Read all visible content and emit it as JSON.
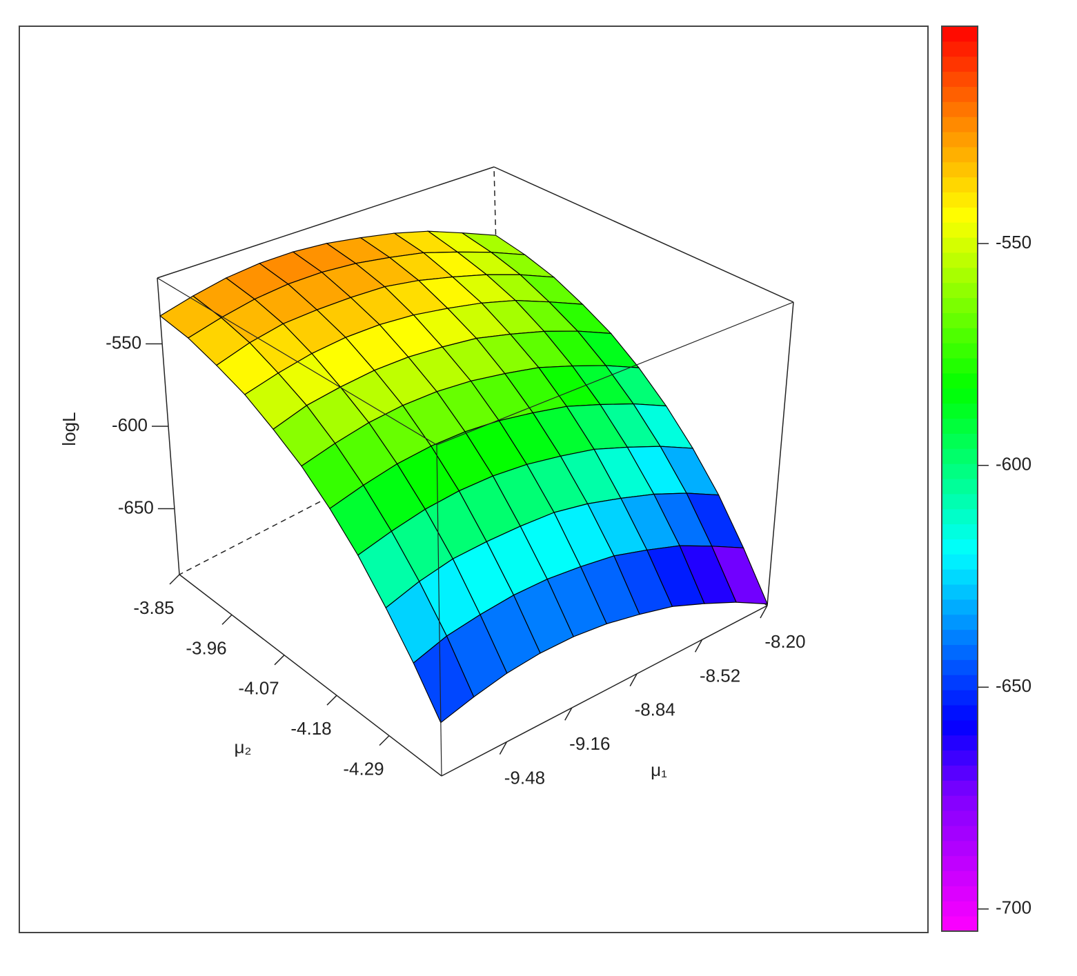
{
  "chart_data": {
    "type": "surface",
    "x_label": "μ₁",
    "y_label": "μ₂",
    "z_label": "logL",
    "x": [
      -9.8,
      -9.64,
      -9.48,
      -9.32,
      -9.16,
      -9.0,
      -8.84,
      -8.68,
      -8.52,
      -8.36,
      -8.2
    ],
    "y": [
      -4.4,
      -4.345,
      -4.29,
      -4.235,
      -4.18,
      -4.125,
      -4.07,
      -4.015,
      -3.96,
      -3.905,
      -3.85
    ],
    "z": [
      [
        -661,
        -656,
        -652,
        -650,
        -650,
        -652,
        -656,
        -661,
        -669,
        -678,
        -689
      ],
      [
        -639,
        -633,
        -630,
        -628,
        -628,
        -630,
        -633,
        -639,
        -646,
        -656,
        -667
      ],
      [
        -619,
        -613,
        -609,
        -608,
        -608,
        -609,
        -613,
        -619,
        -626,
        -635,
        -646
      ],
      [
        -600,
        -595,
        -591,
        -589,
        -589,
        -591,
        -595,
        -600,
        -608,
        -617,
        -628
      ],
      [
        -584,
        -579,
        -575,
        -573,
        -573,
        -575,
        -579,
        -584,
        -592,
        -601,
        -612
      ],
      [
        -570,
        -565,
        -561,
        -559,
        -559,
        -561,
        -565,
        -570,
        -578,
        -587,
        -598
      ],
      [
        -559,
        -553,
        -550,
        -548,
        -548,
        -550,
        -553,
        -559,
        -566,
        -575,
        -586
      ],
      [
        -549,
        -544,
        -540,
        -538,
        -538,
        -540,
        -544,
        -549,
        -556,
        -566,
        -577
      ],
      [
        -542,
        -536,
        -532,
        -531,
        -531,
        -532,
        -536,
        -542,
        -549,
        -558,
        -569
      ],
      [
        -536,
        -531,
        -527,
        -525,
        -525,
        -527,
        -531,
        -536,
        -544,
        -553,
        -564
      ],
      [
        -533,
        -528,
        -524,
        -522,
        -522,
        -524,
        -528,
        -533,
        -540,
        -550,
        -561
      ]
    ],
    "xlim": [
      -9.8,
      -8.2
    ],
    "ylim": [
      -4.4,
      -3.85
    ],
    "zlim": [
      -690,
      -510
    ],
    "xticks": [
      -9.48,
      -9.16,
      -8.84,
      -8.52,
      {
        "value": -8.2,
        "label": "-8.20"
      }
    ],
    "yticks": [
      -4.29,
      -4.18,
      -4.07,
      -3.96,
      -3.85
    ],
    "zticks": [
      -650,
      -600,
      -550
    ],
    "edge_color": "#000000",
    "colorbar": {
      "lim": [
        -705,
        -501
      ],
      "ticks": [
        -700,
        -650,
        -600,
        -550
      ],
      "colorscale": [
        [
          0,
          "#ff00ff"
        ],
        [
          0.15,
          "#8000ff"
        ],
        [
          0.23,
          "#0000ff"
        ],
        [
          0.42,
          "#00ffff"
        ],
        [
          0.6,
          "#00ff00"
        ],
        [
          0.79,
          "#ffff00"
        ],
        [
          0.9,
          "#ff8000"
        ],
        [
          1,
          "#ff0000"
        ]
      ]
    }
  }
}
